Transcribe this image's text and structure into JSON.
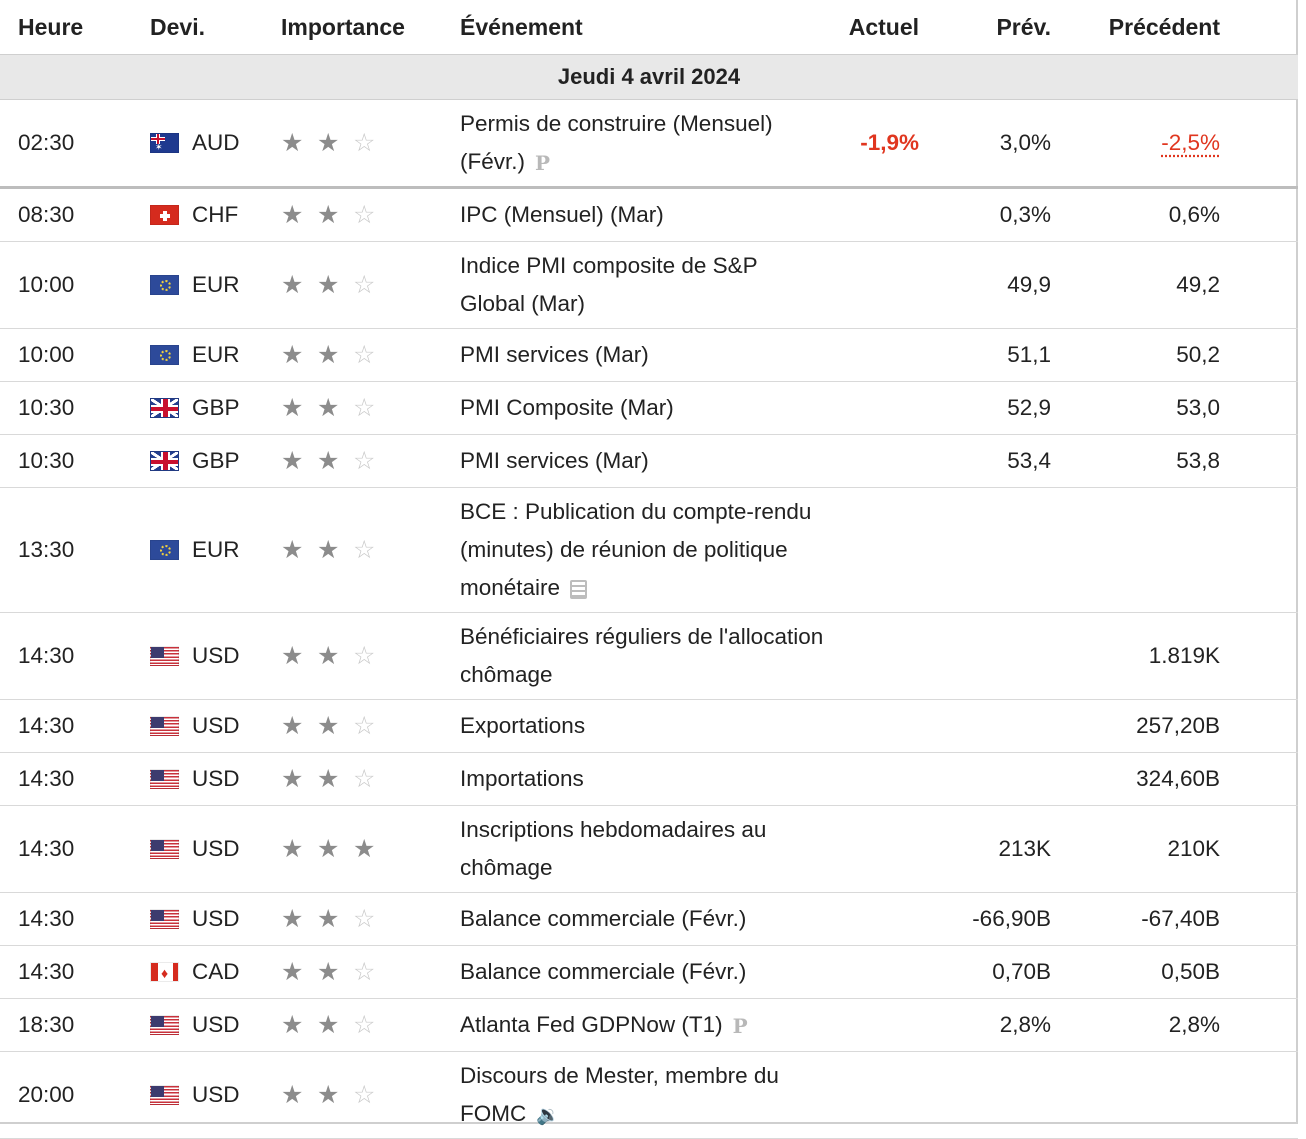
{
  "headers": {
    "time": "Heure",
    "currency": "Devi.",
    "importance": "Importance",
    "event": "Événement",
    "actual": "Actuel",
    "forecast": "Prév.",
    "previous": "Précédent"
  },
  "date_label": "Jeudi 4 avril 2024",
  "icons": {
    "star": "star-icon",
    "pre_release": "p-icon",
    "document": "document-icon",
    "speaker": "speaker-icon"
  },
  "colors": {
    "negative": "#e0361f",
    "date_row_bg": "#e8e8e8",
    "star_on": "#8c8c8c",
    "star_off": "#c9c9c9"
  },
  "rows": [
    {
      "time": "02:30",
      "flag": "au-flag-icon",
      "currency": "AUD",
      "stars": 2,
      "event": "Permis de construire (Mensuel) (Févr.)",
      "icon": "p-icon",
      "actual": "-1,9%",
      "forecast": "3,0%",
      "previous": "-2,5%"
    },
    {
      "time": "08:30",
      "flag": "ch-flag-icon",
      "currency": "CHF",
      "stars": 2,
      "event": "IPC (Mensuel) (Mar)",
      "icon": "",
      "actual": "",
      "forecast": "0,3%",
      "previous": "0,6%"
    },
    {
      "time": "10:00",
      "flag": "eu-flag-icon",
      "currency": "EUR",
      "stars": 2,
      "event": "Indice PMI composite de S&P Global (Mar)",
      "icon": "",
      "actual": "",
      "forecast": "49,9",
      "previous": "49,2"
    },
    {
      "time": "10:00",
      "flag": "eu-flag-icon",
      "currency": "EUR",
      "stars": 2,
      "event": "PMI services (Mar)",
      "icon": "",
      "actual": "",
      "forecast": "51,1",
      "previous": "50,2"
    },
    {
      "time": "10:30",
      "flag": "gb-flag-icon",
      "currency": "GBP",
      "stars": 2,
      "event": "PMI Composite (Mar)",
      "icon": "",
      "actual": "",
      "forecast": "52,9",
      "previous": "53,0"
    },
    {
      "time": "10:30",
      "flag": "gb-flag-icon",
      "currency": "GBP",
      "stars": 2,
      "event": "PMI services (Mar)",
      "icon": "",
      "actual": "",
      "forecast": "53,4",
      "previous": "53,8"
    },
    {
      "time": "13:30",
      "flag": "eu-flag-icon",
      "currency": "EUR",
      "stars": 2,
      "event": "BCE : Publication du compte-rendu (minutes) de réunion de politique monétaire",
      "icon": "document-icon",
      "actual": "",
      "forecast": "",
      "previous": ""
    },
    {
      "time": "14:30",
      "flag": "us-flag-icon",
      "currency": "USD",
      "stars": 2,
      "event": "Bénéficiaires réguliers de l'allocation chômage",
      "icon": "",
      "actual": "",
      "forecast": "",
      "previous": "1.819K"
    },
    {
      "time": "14:30",
      "flag": "us-flag-icon",
      "currency": "USD",
      "stars": 2,
      "event": "Exportations",
      "icon": "",
      "actual": "",
      "forecast": "",
      "previous": "257,20B"
    },
    {
      "time": "14:30",
      "flag": "us-flag-icon",
      "currency": "USD",
      "stars": 2,
      "event": "Importations",
      "icon": "",
      "actual": "",
      "forecast": "",
      "previous": "324,60B"
    },
    {
      "time": "14:30",
      "flag": "us-flag-icon",
      "currency": "USD",
      "stars": 3,
      "event": "Inscriptions hebdomadaires au chômage",
      "icon": "",
      "actual": "",
      "forecast": "213K",
      "previous": "210K"
    },
    {
      "time": "14:30",
      "flag": "us-flag-icon",
      "currency": "USD",
      "stars": 2,
      "event": "Balance commerciale (Févr.)",
      "icon": "",
      "actual": "",
      "forecast": "-66,90B",
      "previous": "-67,40B"
    },
    {
      "time": "14:30",
      "flag": "ca-flag-icon",
      "currency": "CAD",
      "stars": 2,
      "event": "Balance commerciale (Févr.)",
      "icon": "",
      "actual": "",
      "forecast": "0,70B",
      "previous": "0,50B"
    },
    {
      "time": "18:30",
      "flag": "us-flag-icon",
      "currency": "USD",
      "stars": 2,
      "event": "Atlanta Fed GDPNow (T1)",
      "icon": "p-icon",
      "actual": "",
      "forecast": "2,8%",
      "previous": "2,8%"
    },
    {
      "time": "20:00",
      "flag": "us-flag-icon",
      "currency": "USD",
      "stars": 2,
      "event": "Discours de Mester, membre du FOMC",
      "icon": "speaker-icon",
      "actual": "",
      "forecast": "",
      "previous": ""
    }
  ]
}
